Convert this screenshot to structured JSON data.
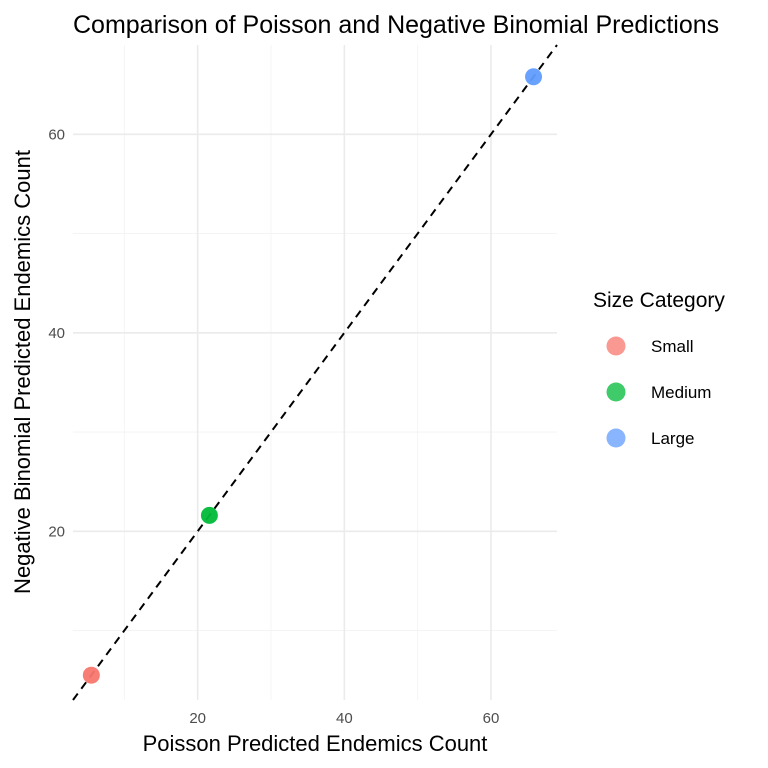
{
  "chart_data": {
    "type": "scatter",
    "title": "Comparison of Poisson and Negative Binomial Predictions",
    "xlabel": "Poisson Predicted Endemics Count",
    "ylabel": "Negative Binomial Predicted Endemics Count",
    "xlim": [
      3,
      69
    ],
    "ylim": [
      3,
      69
    ],
    "x_ticks": [
      20,
      40,
      60
    ],
    "y_ticks": [
      20,
      40,
      60
    ],
    "x_minor_ticks": [
      10,
      30,
      50
    ],
    "y_minor_ticks": [
      10,
      30,
      50
    ],
    "grid": true,
    "reference_line": {
      "type": "identity",
      "style": "dashed",
      "color": "#000000"
    },
    "legend": {
      "title": "Size Category",
      "position": "right",
      "entries": [
        "Small",
        "Medium",
        "Large"
      ]
    },
    "series": [
      {
        "name": "Small",
        "color": "#F8766D",
        "x": [
          5.5
        ],
        "y": [
          5.5
        ]
      },
      {
        "name": "Medium",
        "color": "#00BA38",
        "x": [
          21.6
        ],
        "y": [
          21.6
        ]
      },
      {
        "name": "Large",
        "color": "#619CFF",
        "x": [
          65.8
        ],
        "y": [
          65.8
        ]
      }
    ]
  }
}
